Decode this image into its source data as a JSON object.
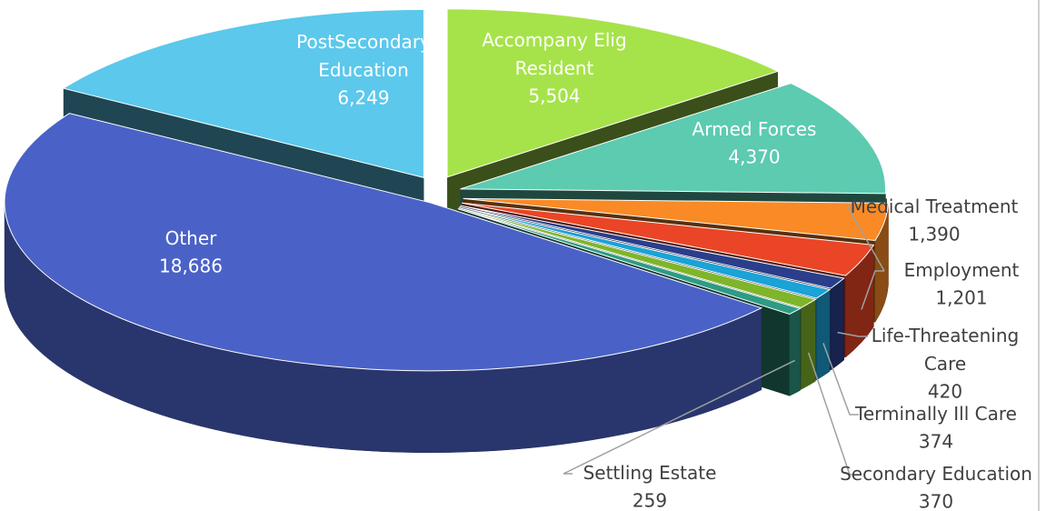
{
  "chart_data": {
    "type": "pie",
    "three_d": true,
    "categories": [
      "Accompany Elig Resident",
      "Armed Forces",
      "Medical Treatment",
      "Employment",
      "Life-Threatening Care",
      "Terminally Ill Care",
      "Secondary Education",
      "Settling Estate",
      "Other",
      "PostSecondary Education"
    ],
    "values": [
      5504,
      4370,
      1390,
      1201,
      420,
      374,
      370,
      259,
      18686,
      6249
    ],
    "value_labels": [
      "5,504",
      "4,370",
      "1,390",
      "1,201",
      "420",
      "374",
      "370",
      "259",
      "18,686",
      "6,249"
    ],
    "colors": [
      "#a6e34a",
      "#5ccbb0",
      "#f98a25",
      "#ea4526",
      "#2a3e8c",
      "#1ba2d6",
      "#7fb52a",
      "#2f9b84",
      "#4a62c7",
      "#5bc8ec"
    ]
  }
}
